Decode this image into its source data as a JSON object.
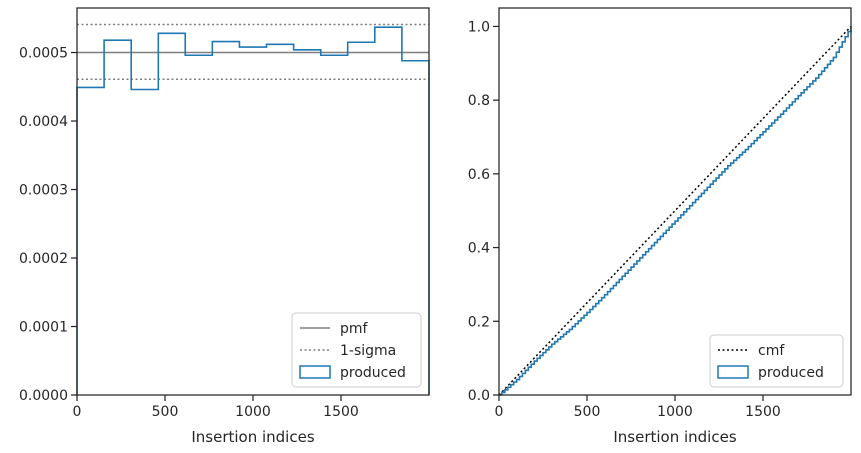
{
  "chart_data": [
    {
      "type": "step",
      "title": "",
      "xlabel": "Insertion indices",
      "ylabel": "",
      "xlim": [
        0,
        2000
      ],
      "ylim": [
        0,
        0.000565
      ],
      "xticks": [
        0,
        500,
        1000,
        1500
      ],
      "xtick_labels": [
        "0",
        "500",
        "1000",
        "1500"
      ],
      "yticks": [
        0,
        0.0001,
        0.0002,
        0.0003,
        0.0004,
        0.0005
      ],
      "ytick_labels": [
        "0.0000",
        "0.0001",
        "0.0002",
        "0.0003",
        "0.0004",
        "0.0005"
      ],
      "grid": false,
      "legend_position": "lower-right",
      "series": [
        {
          "name": "pmf",
          "style": "solid",
          "color": "#7f7f7f",
          "y": 0.0005
        },
        {
          "name": "1-sigma",
          "style": "dotted",
          "color": "#7f7f7f",
          "y_values": [
            0.000461,
            0.000541
          ]
        },
        {
          "name": "produced",
          "style": "step",
          "color": "#1f77b4",
          "bin_edges": [
            0,
            154,
            308,
            462,
            615,
            769,
            923,
            1077,
            1231,
            1385,
            1538,
            1692,
            1846,
            2000
          ],
          "values": [
            0.000449,
            0.000518,
            0.000446,
            0.000528,
            0.000496,
            0.000516,
            0.000508,
            0.000512,
            0.000504,
            0.000496,
            0.000515,
            0.000537,
            0.000488
          ]
        }
      ]
    },
    {
      "type": "line",
      "title": "",
      "xlabel": "Insertion indices",
      "ylabel": "",
      "xlim": [
        0,
        2000
      ],
      "ylim": [
        0,
        1.05
      ],
      "xticks": [
        0,
        500,
        1000,
        1500
      ],
      "xtick_labels": [
        "0",
        "500",
        "1000",
        "1500"
      ],
      "yticks": [
        0,
        0.2,
        0.4,
        0.6,
        0.8,
        1.0
      ],
      "ytick_labels": [
        "0.0",
        "0.2",
        "0.4",
        "0.6",
        "0.8",
        "1.0"
      ],
      "grid": false,
      "legend_position": "lower-right",
      "series": [
        {
          "name": "cmf",
          "style": "dotted",
          "color": "#000000",
          "x": [
            0,
            2000
          ],
          "y": [
            0,
            1.0
          ]
        },
        {
          "name": "produced",
          "style": "step",
          "color": "#1f77b4",
          "x": [
            0,
            100,
            200,
            300,
            400,
            500,
            600,
            700,
            800,
            900,
            1000,
            1100,
            1200,
            1300,
            1400,
            1500,
            1600,
            1700,
            1800,
            1900,
            2000
          ],
          "y": [
            0,
            0.042,
            0.092,
            0.138,
            0.178,
            0.224,
            0.272,
            0.322,
            0.372,
            0.422,
            0.472,
            0.522,
            0.572,
            0.622,
            0.666,
            0.714,
            0.762,
            0.812,
            0.86,
            0.916,
            1.0
          ]
        }
      ]
    }
  ]
}
